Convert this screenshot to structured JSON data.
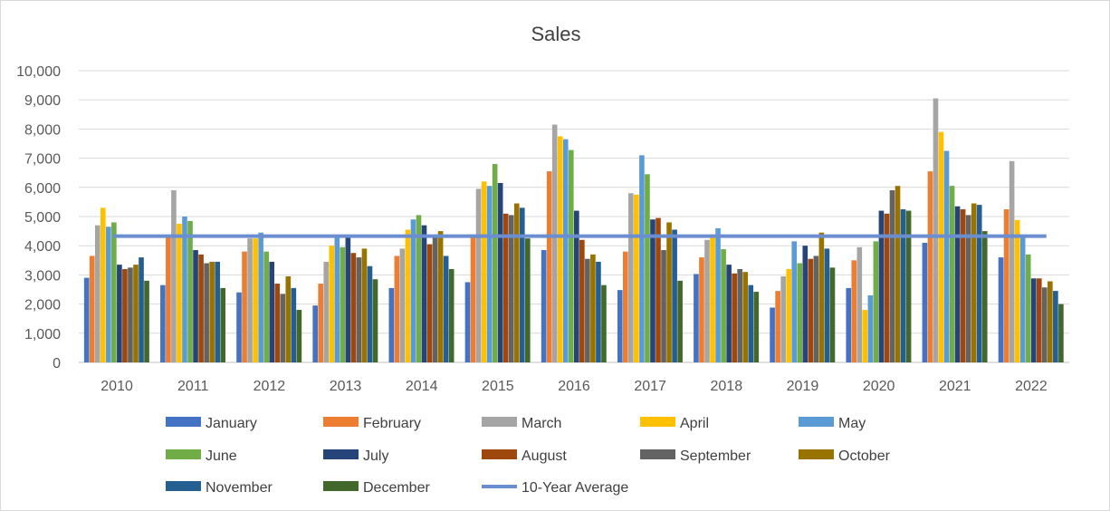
{
  "chart_data": {
    "type": "bar",
    "title": "Sales",
    "xlabel": "",
    "ylabel": "",
    "ylim": [
      0,
      10000
    ],
    "yticks": [
      "0",
      "1,000",
      "2,000",
      "3,000",
      "4,000",
      "5,000",
      "6,000",
      "7,000",
      "8,000",
      "9,000",
      "10,000"
    ],
    "categories": [
      "2010",
      "2011",
      "2012",
      "2013",
      "2014",
      "2015",
      "2016",
      "2017",
      "2018",
      "2019",
      "2020",
      "2021",
      "2022"
    ],
    "grid": true,
    "legend_position": "bottom",
    "series": [
      {
        "name": "January",
        "color": "#4472C4",
        "values": [
          2900,
          2650,
          2400,
          1950,
          2550,
          2750,
          3850,
          2480,
          3030,
          1880,
          2550,
          4100,
          3600
        ]
      },
      {
        "name": "February",
        "color": "#ED7D31",
        "values": [
          3650,
          4350,
          3800,
          2700,
          3650,
          4300,
          6550,
          3800,
          3600,
          2450,
          3500,
          6550,
          5250
        ]
      },
      {
        "name": "March",
        "color": "#A5A5A5",
        "values": [
          4700,
          5900,
          4250,
          3450,
          3900,
          5950,
          8150,
          5800,
          4200,
          2950,
          3950,
          9050,
          6900
        ]
      },
      {
        "name": "April",
        "color": "#FFC000",
        "values": [
          5300,
          4750,
          4250,
          4000,
          4550,
          6200,
          7750,
          5750,
          4300,
          3200,
          1800,
          7900,
          4880
        ]
      },
      {
        "name": "May",
        "color": "#5B9BD5",
        "values": [
          4650,
          5000,
          4450,
          4350,
          4900,
          6050,
          7650,
          7100,
          4600,
          4150,
          2300,
          7250,
          4350
        ]
      },
      {
        "name": "June",
        "color": "#70AD47",
        "values": [
          4800,
          4850,
          3800,
          3950,
          5050,
          6800,
          7280,
          6450,
          3880,
          3400,
          4150,
          6050,
          3700
        ]
      },
      {
        "name": "July",
        "color": "#264478",
        "values": [
          3350,
          3850,
          3450,
          4300,
          4700,
          6150,
          5200,
          4900,
          3350,
          4000,
          5200,
          5350,
          2880
        ]
      },
      {
        "name": "August",
        "color": "#9E480E",
        "values": [
          3200,
          3700,
          2700,
          3750,
          4050,
          5100,
          4200,
          4950,
          3050,
          3550,
          5100,
          5250,
          2880
        ]
      },
      {
        "name": "September",
        "color": "#636363",
        "values": [
          3250,
          3400,
          2350,
          3600,
          4350,
          5050,
          3550,
          3850,
          3200,
          3650,
          5900,
          5050,
          2570
        ]
      },
      {
        "name": "October",
        "color": "#997300",
        "values": [
          3350,
          3450,
          2950,
          3900,
          4500,
          5450,
          3700,
          4800,
          3100,
          4450,
          6050,
          5450,
          2780
        ]
      },
      {
        "name": "November",
        "color": "#255E91",
        "values": [
          3600,
          3450,
          2550,
          3300,
          3650,
          5300,
          3450,
          4550,
          2650,
          3900,
          5250,
          5400,
          2450
        ]
      },
      {
        "name": "December",
        "color": "#43682B",
        "values": [
          2800,
          2550,
          1800,
          2850,
          3200,
          4250,
          2650,
          2800,
          2420,
          3250,
          5200,
          4500,
          2000
        ]
      }
    ],
    "average_line": {
      "name": "10-Year Average",
      "color": "#6A8ED0",
      "value": 4330
    }
  }
}
